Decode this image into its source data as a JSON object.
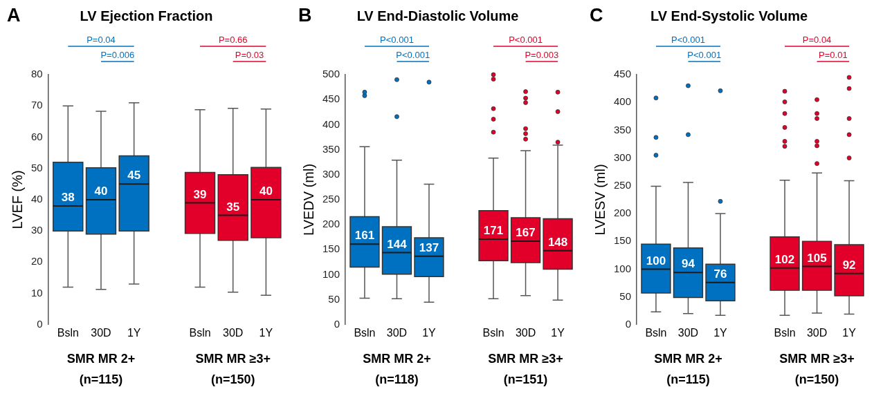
{
  "chart_data": [
    {
      "type": "box",
      "title": "LV Ejection Fraction",
      "ylabel": "LVEF (%)",
      "categories": [
        "Bsln",
        "30D",
        "1Y",
        null,
        "Bsln",
        "30D",
        "1Y"
      ],
      "ylim": [
        0,
        80
      ],
      "yticks": [
        0,
        10,
        20,
        30,
        40,
        50,
        60,
        70,
        80
      ],
      "annotations": [
        "A",
        "P=0.04",
        "P=0.006",
        "P=0.66",
        "P=0.03",
        "SMR MR 2+ (n=115)",
        "SMR MR ≥3+ (n=150)"
      ],
      "series": [
        {
          "color": "#0070c0",
          "value_labels": [
            "38",
            "40",
            "45",
            null,
            null,
            null,
            null
          ],
          "boxes": [
            {
              "low": 12,
              "q1": 30,
              "median": 38,
              "q3": 52,
              "high": 70
            },
            {
              "low": 11.3,
              "q1": 29,
              "median": 40,
              "q3": 50.2,
              "high": 68.3
            },
            {
              "low": 13,
              "q1": 30,
              "median": 45,
              "q3": 54,
              "high": 71
            },
            null,
            null,
            null,
            null
          ]
        },
        {
          "color": "#e2002a",
          "value_labels": [
            null,
            null,
            null,
            null,
            "39",
            "35",
            "40"
          ],
          "boxes": [
            null,
            null,
            null,
            null,
            {
              "low": 12,
              "q1": 29.2,
              "median": 39,
              "q3": 48.7,
              "high": 68.8
            },
            {
              "low": 10.4,
              "q1": 27,
              "median": 35,
              "q3": 48,
              "high": 69.2
            },
            {
              "low": 9.4,
              "q1": 27.8,
              "median": 40,
              "q3": 50.3,
              "high": 69
            }
          ]
        }
      ]
    },
    {
      "type": "box",
      "title": "LV End-Diastolic Volume",
      "ylabel": "LVEDV (ml)",
      "categories": [
        "Bsln",
        "30D",
        "1Y",
        null,
        "Bsln",
        "30D",
        "1Y"
      ],
      "ylim": [
        0,
        500
      ],
      "yticks": [
        0,
        50,
        100,
        150,
        200,
        250,
        300,
        350,
        400,
        450,
        500
      ],
      "annotations": [
        "B",
        "P<0.001",
        "P<0.001",
        "P<0.001",
        "P=0.003",
        "SMR MR 2+ (n=118)",
        "SMR MR ≥3+ (n=151)"
      ],
      "series": [
        {
          "color": "#0070c0",
          "value_labels": [
            "161",
            "144",
            "137",
            null,
            null,
            null,
            null
          ],
          "boxes": [
            {
              "low": 53,
              "q1": 115,
              "median": 161,
              "q3": 216,
              "high": 356,
              "outliers": [
                458,
                465
              ]
            },
            {
              "low": 52,
              "q1": 101,
              "median": 144,
              "q3": 196,
              "high": 329,
              "outliers": [
                416,
                490
              ]
            },
            {
              "low": 45,
              "q1": 96,
              "median": 137,
              "q3": 174,
              "high": 281,
              "outliers": [
                485
              ]
            },
            null,
            null,
            null,
            null
          ]
        },
        {
          "color": "#e2002a",
          "value_labels": [
            null,
            null,
            null,
            null,
            "171",
            "167",
            "148"
          ],
          "boxes": [
            null,
            null,
            null,
            null,
            {
              "low": 52,
              "q1": 128,
              "median": 171,
              "q3": 228,
              "high": 333,
              "outliers": [
                385,
                411,
                432,
                491,
                500
              ]
            },
            {
              "low": 58,
              "q1": 124,
              "median": 167,
              "q3": 214,
              "high": 348,
              "outliers": [
                371,
                382,
                392,
                444,
                453,
                466
              ]
            },
            {
              "low": 49,
              "q1": 111,
              "median": 148,
              "q3": 212,
              "high": 359,
              "outliers": [
                365,
                426,
                465
              ]
            }
          ]
        }
      ]
    },
    {
      "type": "box",
      "title": "LV End-Systolic Volume",
      "ylabel": "LVESV (ml)",
      "categories": [
        "Bsln",
        "30D",
        "1Y",
        null,
        "Bsln",
        "30D",
        "1Y"
      ],
      "ylim": [
        0,
        450
      ],
      "yticks": [
        0,
        50,
        100,
        150,
        200,
        250,
        300,
        350,
        400,
        450
      ],
      "annotations": [
        "C",
        "P<0.001",
        "P<0.001",
        "P=0.04",
        "P=0.01",
        "SMR MR 2+ (n=115)",
        "SMR MR ≥3+ (n=150)"
      ],
      "series": [
        {
          "color": "#0070c0",
          "value_labels": [
            "100",
            "94",
            "76",
            null,
            null,
            null,
            null
          ],
          "boxes": [
            {
              "low": 23,
              "q1": 57,
              "median": 100,
              "q3": 145,
              "high": 249,
              "outliers": [
                305,
                337,
                408
              ]
            },
            {
              "low": 20,
              "q1": 49,
              "median": 94,
              "q3": 138,
              "high": 256,
              "outliers": [
                342,
                430
              ]
            },
            {
              "low": 17,
              "q1": 43,
              "median": 76,
              "q3": 109,
              "high": 200,
              "outliers": [
                222,
                421
              ]
            },
            null,
            null,
            null,
            null
          ]
        },
        {
          "color": "#e2002a",
          "value_labels": [
            null,
            null,
            null,
            null,
            "102",
            "105",
            "92"
          ],
          "boxes": [
            null,
            null,
            null,
            null,
            {
              "low": 17,
              "q1": 62,
              "median": 102,
              "q3": 158,
              "high": 260,
              "outliers": [
                321,
                330,
                355,
                380,
                401,
                420
              ]
            },
            {
              "low": 21,
              "q1": 62,
              "median": 105,
              "q3": 150,
              "high": 273,
              "outliers": [
                290,
                322,
                330,
                371,
                380,
                405
              ]
            },
            {
              "low": 19,
              "q1": 52,
              "median": 92,
              "q3": 144,
              "high": 259,
              "outliers": [
                300,
                342,
                371,
                425,
                445
              ]
            }
          ]
        }
      ]
    }
  ]
}
